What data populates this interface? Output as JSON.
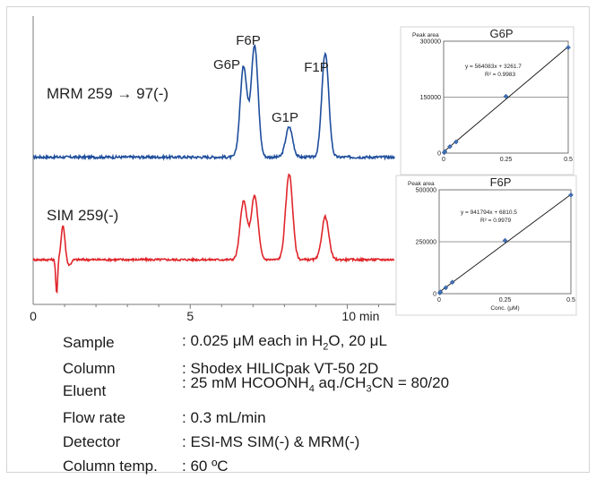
{
  "chart_data": [
    {
      "type": "line",
      "xlabel": "min",
      "xlim": [
        0,
        11.5
      ],
      "x_ticks": [
        {
          "value": 0,
          "label": "0"
        },
        {
          "value": 5,
          "label": "5"
        },
        {
          "value": 10,
          "label": "10 min"
        }
      ],
      "series": [
        {
          "name": "MRM 259 → 97(-)",
          "color": "#1f4e9c",
          "baseline": 0.02,
          "noise": 0.012,
          "peaks": [
            {
              "x": 6.7,
              "height": 0.81
            },
            {
              "x": 7.05,
              "height": 1.0
            },
            {
              "x": 8.15,
              "height": 0.27
            },
            {
              "x": 9.3,
              "height": 0.93
            }
          ]
        },
        {
          "name": "SIM 259(-)",
          "color": "#e0262b",
          "baseline": 0.02,
          "noise": 0.012,
          "peaks": [
            {
              "x": 0.95,
              "height": 0.38
            },
            {
              "x": 6.7,
              "height": 0.65
            },
            {
              "x": 7.05,
              "height": 0.71
            },
            {
              "x": 8.15,
              "height": 0.96
            },
            {
              "x": 9.3,
              "height": 0.48
            }
          ]
        }
      ],
      "annotations": [
        "G6P",
        "F6P",
        "G1P",
        "F1P"
      ]
    },
    {
      "type": "scatter",
      "title": "G6P",
      "ylabel": "Peak area",
      "xlim": [
        0,
        0.5
      ],
      "ylim": [
        0,
        300000
      ],
      "y_ticks": [
        "0",
        "150000",
        "300000"
      ],
      "x_ticks": [
        "0",
        "0.25",
        "0.5"
      ],
      "equation": "y = 564083x + 3261.7",
      "r2": "R² = 0.9983",
      "fit": {
        "slope": 564083,
        "intercept": 3261.7
      },
      "points": [
        [
          0.0025,
          1500
        ],
        [
          0.005,
          3900
        ],
        [
          0.025,
          17300
        ],
        [
          0.05,
          30000
        ],
        [
          0.25,
          152000
        ],
        [
          0.5,
          283000
        ]
      ]
    },
    {
      "type": "scatter",
      "title": "F6P",
      "ylabel": "Peak area",
      "xlabel": "Conc. (μM)",
      "xlim": [
        0,
        0.5
      ],
      "ylim": [
        0,
        500000
      ],
      "y_ticks": [
        "0",
        "250000",
        "500000"
      ],
      "x_ticks": [
        "0",
        "0.25",
        "0.5"
      ],
      "equation": "y = 941794x + 6810.5",
      "r2": "R² = 0.9979",
      "fit": {
        "slope": 941794,
        "intercept": 6810.5
      },
      "points": [
        [
          0.0025,
          4000
        ],
        [
          0.005,
          8000
        ],
        [
          0.025,
          28500
        ],
        [
          0.05,
          55000
        ],
        [
          0.25,
          256000
        ],
        [
          0.5,
          475000
        ]
      ]
    }
  ],
  "conditions": [
    {
      "label": "Sample",
      "value_parts": [
        ": 0.025 μM each in H",
        "2",
        "O, 20 μL"
      ]
    },
    {
      "label": "Column",
      "value_parts": [
        ": Shodex HILICpak VT-50 2D"
      ]
    },
    {
      "label": "Eluent",
      "value_parts": [
        ": 25 mM HCOONH",
        "4",
        " aq./CH",
        "3",
        "CN = 80/20"
      ]
    },
    {
      "label": "Flow rate",
      "value_parts": [
        ": 0.3 mL/min"
      ]
    },
    {
      "label": "Detector",
      "value_parts": [
        ": ESI-MS SIM(-) & MRM(-)"
      ]
    },
    {
      "label": "Column temp.",
      "value_parts": [
        ": 60 ºC"
      ]
    }
  ]
}
